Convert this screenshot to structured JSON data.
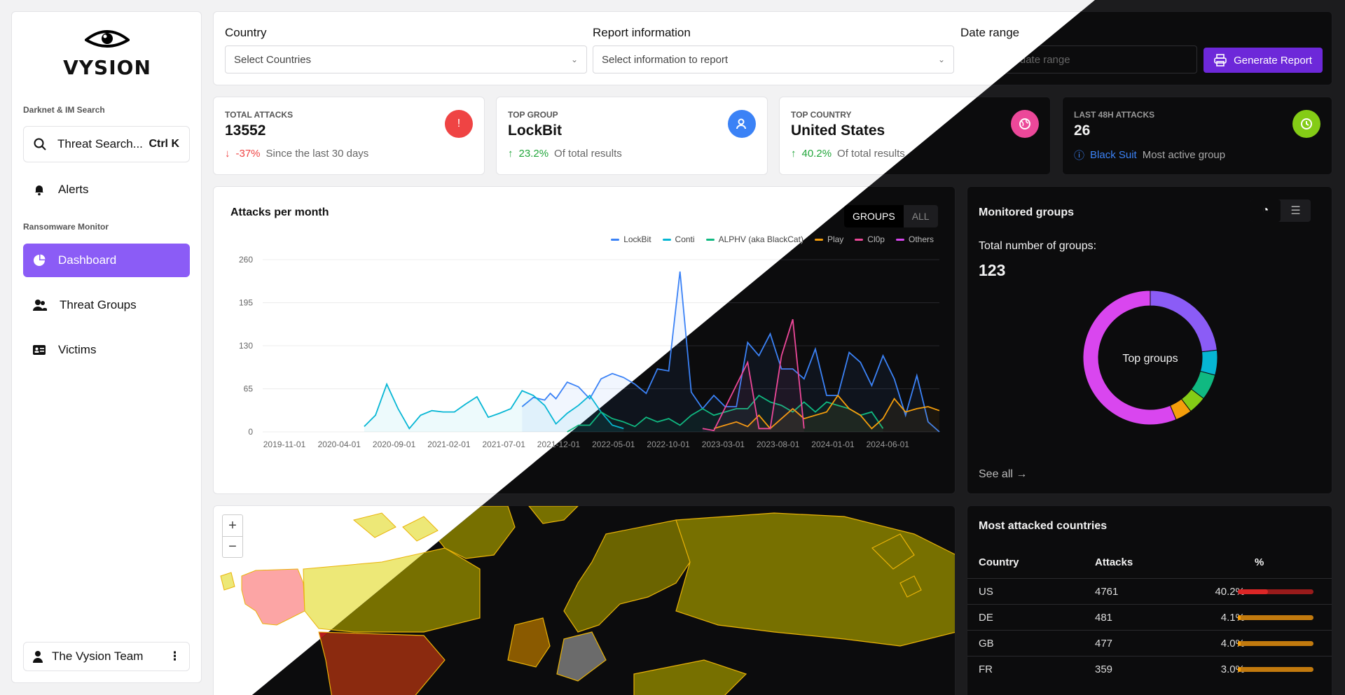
{
  "brand": {
    "name": "VYSION"
  },
  "sidebar": {
    "section_search": "Darknet & IM Search",
    "search_label": "Threat Search...",
    "search_shortcut": "Ctrl K",
    "alerts": "Alerts",
    "section_ransomware": "Ransomware Monitor",
    "items": [
      {
        "label": "Dashboard"
      },
      {
        "label": "Threat Groups"
      },
      {
        "label": "Victims"
      }
    ],
    "user": "The Vysion Team"
  },
  "filters": {
    "country_label": "Country",
    "country_placeholder": "Select Countries",
    "report_label": "Report information",
    "report_placeholder": "Select information to report",
    "date_label": "Date range",
    "date_placeholder": "Select date range",
    "generate": "Generate Report"
  },
  "stats": [
    {
      "title": "TOTAL ATTACKS",
      "value": "13552",
      "change": "-37%",
      "note": "Since the last 30 days",
      "color": "#ef4444"
    },
    {
      "title": "TOP GROUP",
      "value": "LockBit",
      "change": "23.2%",
      "note": "Of total results",
      "color": "#3b82f6"
    },
    {
      "title": "TOP COUNTRY",
      "value": "United States",
      "change": "40.2%",
      "note": "Of total results",
      "color": "#ec4899"
    },
    {
      "title": "LAST 48H ATTACKS",
      "value": "26",
      "change": "Black Suit",
      "note": "Most active group",
      "color": "#84cc16"
    }
  ],
  "attacks_chart": {
    "title": "Attacks per month",
    "toggle_groups": "GROUPS",
    "toggle_all": "ALL"
  },
  "chart_data": {
    "type": "line",
    "x_ticks": [
      "2019-11-01",
      "2020-04-01",
      "2020-09-01",
      "2021-02-01",
      "2021-07-01",
      "2021-12-01",
      "2022-05-01",
      "2022-10-01",
      "2023-03-01",
      "2023-08-01",
      "2024-01-01",
      "2024-06-01"
    ],
    "y_ticks": [
      0,
      65,
      130,
      195,
      260
    ],
    "ylim": [
      0,
      260
    ],
    "x_range": [
      0,
      60
    ],
    "series": [
      {
        "name": "LockBit",
        "color": "#3b82f6",
        "points": [
          [
            23,
            38
          ],
          [
            24,
            52
          ],
          [
            25,
            48
          ],
          [
            25.5,
            58
          ],
          [
            26,
            50
          ],
          [
            27,
            75
          ],
          [
            28,
            68
          ],
          [
            29,
            50
          ],
          [
            30,
            80
          ],
          [
            31,
            88
          ],
          [
            32,
            82
          ],
          [
            33,
            72
          ],
          [
            34,
            58
          ],
          [
            35,
            95
          ],
          [
            36,
            92
          ],
          [
            37,
            242
          ],
          [
            38,
            60
          ],
          [
            39,
            35
          ],
          [
            40,
            55
          ],
          [
            41,
            38
          ],
          [
            42,
            38
          ],
          [
            43,
            135
          ],
          [
            44,
            115
          ],
          [
            45,
            148
          ],
          [
            46,
            95
          ],
          [
            47,
            95
          ],
          [
            48,
            80
          ],
          [
            49,
            125
          ],
          [
            50,
            55
          ],
          [
            51,
            55
          ],
          [
            52,
            120
          ],
          [
            53,
            105
          ],
          [
            54,
            70
          ],
          [
            55,
            115
          ],
          [
            56,
            80
          ],
          [
            57,
            25
          ],
          [
            58,
            85
          ],
          [
            59,
            15
          ],
          [
            60,
            0
          ]
        ]
      },
      {
        "name": "Conti",
        "color": "#06b6d4",
        "points": [
          [
            9,
            8
          ],
          [
            10,
            25
          ],
          [
            11,
            72
          ],
          [
            12,
            35
          ],
          [
            13,
            5
          ],
          [
            14,
            25
          ],
          [
            15,
            32
          ],
          [
            16,
            30
          ],
          [
            17,
            30
          ],
          [
            18,
            42
          ],
          [
            19,
            53
          ],
          [
            20,
            22
          ],
          [
            21,
            28
          ],
          [
            22,
            35
          ],
          [
            23,
            62
          ],
          [
            24,
            55
          ],
          [
            25,
            40
          ],
          [
            26,
            12
          ],
          [
            27,
            28
          ],
          [
            28,
            40
          ],
          [
            29,
            55
          ],
          [
            30,
            30
          ],
          [
            31,
            10
          ],
          [
            32,
            5
          ]
        ]
      },
      {
        "name": "ALPHV (aka BlackCat)",
        "color": "#10b981",
        "points": [
          [
            27,
            0
          ],
          [
            28,
            10
          ],
          [
            29,
            10
          ],
          [
            30,
            30
          ],
          [
            31,
            20
          ],
          [
            32,
            15
          ],
          [
            33,
            8
          ],
          [
            34,
            22
          ],
          [
            35,
            15
          ],
          [
            36,
            20
          ],
          [
            37,
            10
          ],
          [
            38,
            25
          ],
          [
            39,
            35
          ],
          [
            40,
            25
          ],
          [
            41,
            30
          ],
          [
            42,
            35
          ],
          [
            43,
            35
          ],
          [
            44,
            55
          ],
          [
            45,
            45
          ],
          [
            46,
            40
          ],
          [
            47,
            30
          ],
          [
            48,
            45
          ],
          [
            49,
            30
          ],
          [
            50,
            45
          ],
          [
            51,
            40
          ],
          [
            52,
            35
          ],
          [
            53,
            25
          ],
          [
            54,
            30
          ],
          [
            55,
            5
          ]
        ]
      },
      {
        "name": "Play",
        "color": "#f59e0b",
        "points": [
          [
            40,
            5
          ],
          [
            41,
            10
          ],
          [
            42,
            15
          ],
          [
            43,
            8
          ],
          [
            44,
            25
          ],
          [
            45,
            5
          ],
          [
            46,
            20
          ],
          [
            47,
            35
          ],
          [
            48,
            20
          ],
          [
            49,
            25
          ],
          [
            50,
            30
          ],
          [
            51,
            55
          ],
          [
            52,
            35
          ],
          [
            53,
            25
          ],
          [
            54,
            5
          ],
          [
            55,
            20
          ],
          [
            56,
            50
          ],
          [
            57,
            30
          ],
          [
            58,
            35
          ],
          [
            59,
            38
          ],
          [
            60,
            32
          ]
        ]
      },
      {
        "name": "Cl0p",
        "color": "#ec4899",
        "points": [
          [
            39,
            5
          ],
          [
            40,
            2
          ],
          [
            43,
            105
          ],
          [
            44,
            5
          ],
          [
            45,
            5
          ],
          [
            46,
            115
          ],
          [
            47,
            170
          ],
          [
            48,
            5
          ]
        ]
      },
      {
        "name": "Others",
        "color": "#d946ef",
        "points": []
      }
    ]
  },
  "groups": {
    "title": "Monitored groups",
    "total_label": "Total number of groups:",
    "total": "123",
    "donut_center": "Top groups",
    "see_all": "See all",
    "slices": [
      {
        "value": 23.2,
        "color": "#8b5cf6"
      },
      {
        "value": 6.0,
        "color": "#06b6d4"
      },
      {
        "value": 6.2,
        "color": "#10b981"
      },
      {
        "value": 4.3,
        "color": "#84cc16"
      },
      {
        "value": 4.0,
        "color": "#f59e0b"
      },
      {
        "value": 56.3,
        "color": "#d946ef"
      }
    ]
  },
  "countries": {
    "title": "Most attacked countries",
    "headers": [
      "Country",
      "Attacks",
      "%"
    ],
    "rows": [
      {
        "code": "US",
        "attacks": "4761",
        "pct": "40.2%",
        "frac": 0.402,
        "color": "#dc2626"
      },
      {
        "code": "DE",
        "attacks": "481",
        "pct": "4.1%",
        "frac": 0.041,
        "color": "#f59e0b"
      },
      {
        "code": "GB",
        "attacks": "477",
        "pct": "4.0%",
        "frac": 0.04,
        "color": "#f59e0b"
      },
      {
        "code": "FR",
        "attacks": "359",
        "pct": "3.0%",
        "frac": 0.03,
        "color": "#f59e0b"
      }
    ]
  }
}
